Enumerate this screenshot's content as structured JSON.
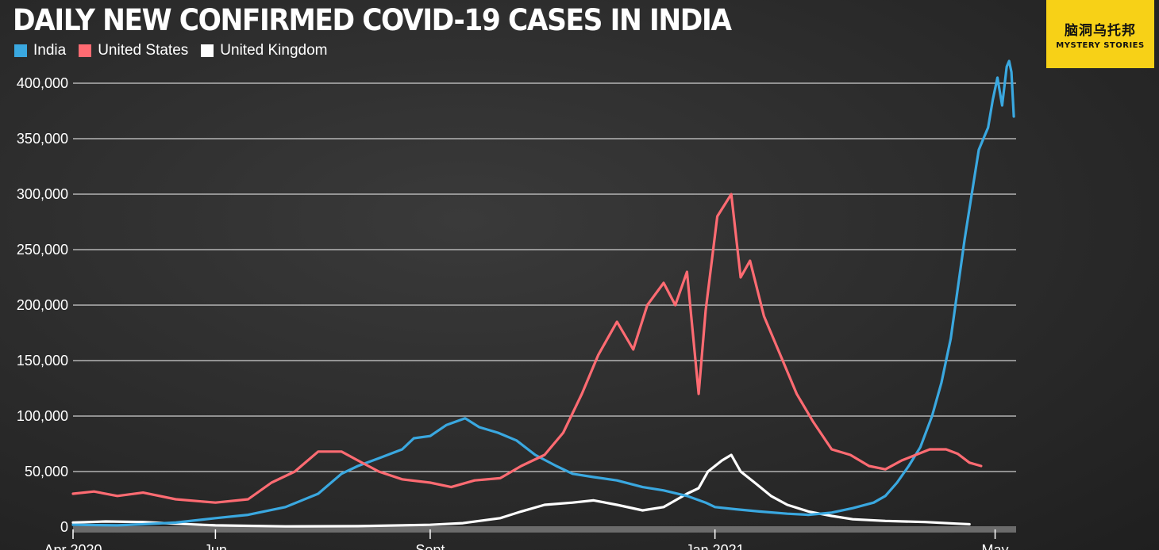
{
  "chart_data": {
    "type": "line",
    "title": "DAILY NEW CONFIRMED COVID-19 CASES IN INDIA",
    "ylim": [
      0,
      400000
    ],
    "yticks": [
      0,
      50000,
      100000,
      150000,
      200000,
      250000,
      300000,
      350000,
      400000
    ],
    "ytick_labels": [
      "0",
      "50,000",
      "100,000",
      "150,000",
      "200,000",
      "250,000",
      "300,000",
      "350,000",
      "400,000"
    ],
    "xlim": [
      "2020-04-01",
      "2021-05-10"
    ],
    "xticks": [
      "2020-04-01",
      "2020-06-01",
      "2020-09-01",
      "2021-01-01",
      "2021-05-01"
    ],
    "xtick_labels": [
      "Apr 2020",
      "Jun",
      "Sept",
      "Jan 2021",
      "May"
    ],
    "grid": true,
    "legend_position": "top-left",
    "series": [
      {
        "name": "India",
        "color": "#3aa8e0",
        "points": [
          [
            "2020-04-01",
            2000
          ],
          [
            "2020-04-20",
            1500
          ],
          [
            "2020-05-01",
            2500
          ],
          [
            "2020-05-15",
            4000
          ],
          [
            "2020-06-01",
            8000
          ],
          [
            "2020-06-15",
            11000
          ],
          [
            "2020-07-01",
            18000
          ],
          [
            "2020-07-15",
            30000
          ],
          [
            "2020-07-25",
            48000
          ],
          [
            "2020-08-01",
            55000
          ],
          [
            "2020-08-10",
            62000
          ],
          [
            "2020-08-20",
            70000
          ],
          [
            "2020-08-25",
            80000
          ],
          [
            "2020-09-01",
            82000
          ],
          [
            "2020-09-08",
            92000
          ],
          [
            "2020-09-16",
            98000
          ],
          [
            "2020-09-22",
            90000
          ],
          [
            "2020-09-30",
            85000
          ],
          [
            "2020-10-08",
            78000
          ],
          [
            "2020-10-16",
            65000
          ],
          [
            "2020-10-25",
            55000
          ],
          [
            "2020-11-01",
            48000
          ],
          [
            "2020-11-10",
            45000
          ],
          [
            "2020-11-20",
            42000
          ],
          [
            "2020-12-01",
            36000
          ],
          [
            "2020-12-10",
            33000
          ],
          [
            "2020-12-20",
            28000
          ],
          [
            "2020-12-28",
            22000
          ],
          [
            "2021-01-01",
            18000
          ],
          [
            "2021-01-10",
            16000
          ],
          [
            "2021-01-20",
            14000
          ],
          [
            "2021-02-01",
            12000
          ],
          [
            "2021-02-10",
            11000
          ],
          [
            "2021-02-20",
            13000
          ],
          [
            "2021-03-01",
            17000
          ],
          [
            "2021-03-10",
            22000
          ],
          [
            "2021-03-15",
            28000
          ],
          [
            "2021-03-20",
            40000
          ],
          [
            "2021-03-25",
            55000
          ],
          [
            "2021-03-30",
            72000
          ],
          [
            "2021-04-04",
            100000
          ],
          [
            "2021-04-08",
            130000
          ],
          [
            "2021-04-12",
            170000
          ],
          [
            "2021-04-15",
            215000
          ],
          [
            "2021-04-18",
            260000
          ],
          [
            "2021-04-21",
            300000
          ],
          [
            "2021-04-24",
            340000
          ],
          [
            "2021-04-26",
            350000
          ],
          [
            "2021-04-28",
            360000
          ],
          [
            "2021-04-30",
            385000
          ],
          [
            "2021-05-02",
            405000
          ],
          [
            "2021-05-04",
            380000
          ],
          [
            "2021-05-06",
            415000
          ],
          [
            "2021-05-07",
            420000
          ],
          [
            "2021-05-08",
            410000
          ],
          [
            "2021-05-09",
            370000
          ]
        ]
      },
      {
        "name": "United States",
        "color": "#ff6b72",
        "points": [
          [
            "2020-04-01",
            30000
          ],
          [
            "2020-04-10",
            32000
          ],
          [
            "2020-04-20",
            28000
          ],
          [
            "2020-05-01",
            31000
          ],
          [
            "2020-05-15",
            25000
          ],
          [
            "2020-06-01",
            22000
          ],
          [
            "2020-06-15",
            25000
          ],
          [
            "2020-06-25",
            40000
          ],
          [
            "2020-07-05",
            50000
          ],
          [
            "2020-07-15",
            68000
          ],
          [
            "2020-07-25",
            68000
          ],
          [
            "2020-08-01",
            60000
          ],
          [
            "2020-08-10",
            50000
          ],
          [
            "2020-08-20",
            43000
          ],
          [
            "2020-09-01",
            40000
          ],
          [
            "2020-09-10",
            36000
          ],
          [
            "2020-09-20",
            42000
          ],
          [
            "2020-10-01",
            44000
          ],
          [
            "2020-10-10",
            55000
          ],
          [
            "2020-10-20",
            65000
          ],
          [
            "2020-10-28",
            85000
          ],
          [
            "2020-11-05",
            120000
          ],
          [
            "2020-11-12",
            155000
          ],
          [
            "2020-11-20",
            185000
          ],
          [
            "2020-11-27",
            160000
          ],
          [
            "2020-12-03",
            200000
          ],
          [
            "2020-12-10",
            220000
          ],
          [
            "2020-12-15",
            200000
          ],
          [
            "2020-12-20",
            230000
          ],
          [
            "2020-12-25",
            120000
          ],
          [
            "2020-12-28",
            195000
          ],
          [
            "2021-01-02",
            280000
          ],
          [
            "2021-01-08",
            300000
          ],
          [
            "2021-01-12",
            225000
          ],
          [
            "2021-01-16",
            240000
          ],
          [
            "2021-01-22",
            190000
          ],
          [
            "2021-01-28",
            160000
          ],
          [
            "2021-02-05",
            120000
          ],
          [
            "2021-02-12",
            95000
          ],
          [
            "2021-02-20",
            70000
          ],
          [
            "2021-02-28",
            65000
          ],
          [
            "2021-03-08",
            55000
          ],
          [
            "2021-03-15",
            52000
          ],
          [
            "2021-03-22",
            60000
          ],
          [
            "2021-03-28",
            65000
          ],
          [
            "2021-04-03",
            70000
          ],
          [
            "2021-04-10",
            70000
          ],
          [
            "2021-04-15",
            66000
          ],
          [
            "2021-04-20",
            58000
          ],
          [
            "2021-04-25",
            55000
          ]
        ]
      },
      {
        "name": "United Kingdom",
        "color": "#ffffff",
        "points": [
          [
            "2020-04-01",
            4000
          ],
          [
            "2020-04-15",
            5000
          ],
          [
            "2020-05-01",
            4500
          ],
          [
            "2020-05-15",
            3000
          ],
          [
            "2020-06-01",
            1500
          ],
          [
            "2020-07-01",
            600
          ],
          [
            "2020-08-01",
            800
          ],
          [
            "2020-09-01",
            2000
          ],
          [
            "2020-09-15",
            3500
          ],
          [
            "2020-10-01",
            8000
          ],
          [
            "2020-10-10",
            14000
          ],
          [
            "2020-10-20",
            20000
          ],
          [
            "2020-11-01",
            22000
          ],
          [
            "2020-11-10",
            24000
          ],
          [
            "2020-11-20",
            20000
          ],
          [
            "2020-12-01",
            15000
          ],
          [
            "2020-12-10",
            18000
          ],
          [
            "2020-12-20",
            30000
          ],
          [
            "2020-12-25",
            35000
          ],
          [
            "2020-12-29",
            50000
          ],
          [
            "2021-01-04",
            60000
          ],
          [
            "2021-01-08",
            65000
          ],
          [
            "2021-01-12",
            50000
          ],
          [
            "2021-01-18",
            40000
          ],
          [
            "2021-01-25",
            28000
          ],
          [
            "2021-02-01",
            20000
          ],
          [
            "2021-02-10",
            14000
          ],
          [
            "2021-02-20",
            10000
          ],
          [
            "2021-03-01",
            7000
          ],
          [
            "2021-03-15",
            5500
          ],
          [
            "2021-04-01",
            4500
          ],
          [
            "2021-04-15",
            3000
          ],
          [
            "2021-04-20",
            2500
          ]
        ]
      }
    ]
  },
  "logo": {
    "line1": "脑洞乌托邦",
    "line2": "MYSTERY STORIES"
  }
}
